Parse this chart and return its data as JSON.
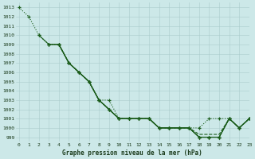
{
  "xlabel": "Graphe pression niveau de la mer (hPa)",
  "bg_color": "#cce8e8",
  "grid_color": "#aacccc",
  "line_color": "#1a5c1a",
  "ylim": [
    998.5,
    1013.5
  ],
  "xlim": [
    -0.3,
    23
  ],
  "yticks": [
    999,
    1000,
    1001,
    1002,
    1003,
    1004,
    1005,
    1006,
    1007,
    1008,
    1009,
    1010,
    1011,
    1012,
    1013
  ],
  "xticks": [
    0,
    1,
    2,
    3,
    4,
    5,
    6,
    7,
    8,
    9,
    10,
    11,
    12,
    13,
    14,
    15,
    16,
    17,
    18,
    19,
    20,
    21,
    22,
    23
  ],
  "lines": [
    {
      "x": [
        0,
        1,
        2,
        3,
        4,
        5,
        6,
        7,
        8,
        9,
        10,
        11,
        12,
        13,
        14,
        15,
        16,
        17,
        18,
        19,
        20,
        21,
        22,
        23
      ],
      "y": [
        1013,
        1012,
        1010,
        1009,
        1009,
        1007,
        1006,
        1005,
        1003,
        1003,
        1001,
        1001,
        1001,
        1001,
        1000,
        1000,
        1000,
        1000,
        1000,
        1001,
        1001,
        1001,
        1000,
        1001
      ],
      "style": "dotted",
      "marker": true
    },
    {
      "x": [
        2,
        3,
        4,
        5,
        6,
        7,
        8,
        9,
        10,
        11,
        12,
        13,
        14,
        15,
        16,
        17,
        18,
        19,
        20,
        21,
        22,
        23
      ],
      "y": [
        1010,
        1009,
        1009,
        1007,
        1006,
        1005,
        1003,
        1002,
        1001,
        1001,
        1001,
        1001,
        1000,
        1000,
        1000,
        1000,
        999,
        999,
        999,
        1001,
        1000,
        1001
      ],
      "style": "solid",
      "marker": true
    },
    {
      "x": [
        3,
        4,
        5,
        6,
        7,
        8,
        9,
        10,
        11,
        12,
        13,
        14,
        15,
        16,
        17,
        18,
        19,
        20,
        21,
        22,
        23
      ],
      "y": [
        1009,
        1009,
        1007,
        1006,
        1005,
        1003,
        1002,
        1001,
        1001,
        1001,
        1001,
        1000,
        1000,
        1000,
        1000,
        999,
        999,
        999,
        1001,
        1000,
        1001
      ],
      "style": "solid",
      "marker": true
    },
    {
      "x": [
        4,
        5,
        6,
        7,
        8,
        9,
        10,
        11,
        12,
        13,
        14,
        15,
        16,
        17,
        18,
        19,
        20,
        21,
        22,
        23
      ],
      "y": [
        1009,
        1007,
        1006,
        1005,
        1003,
        1002,
        1001,
        1001,
        1001,
        1001,
        1000,
        1000,
        1000,
        1000,
        999,
        999,
        999,
        1001,
        1000,
        1001
      ],
      "style": "solid",
      "marker": true
    },
    {
      "x": [
        4,
        5,
        6,
        7,
        8,
        9,
        10,
        11,
        12,
        13,
        14,
        15,
        16,
        17,
        18,
        19,
        20,
        21,
        22,
        23
      ],
      "y": [
        1009,
        1007,
        1006,
        1005,
        1003,
        1002,
        1001,
        1001,
        1001,
        1001,
        1000,
        1000,
        1000,
        1000,
        999.3,
        999.3,
        999.3,
        1001,
        1000,
        1001
      ],
      "style": "dashed",
      "marker": false
    }
  ]
}
